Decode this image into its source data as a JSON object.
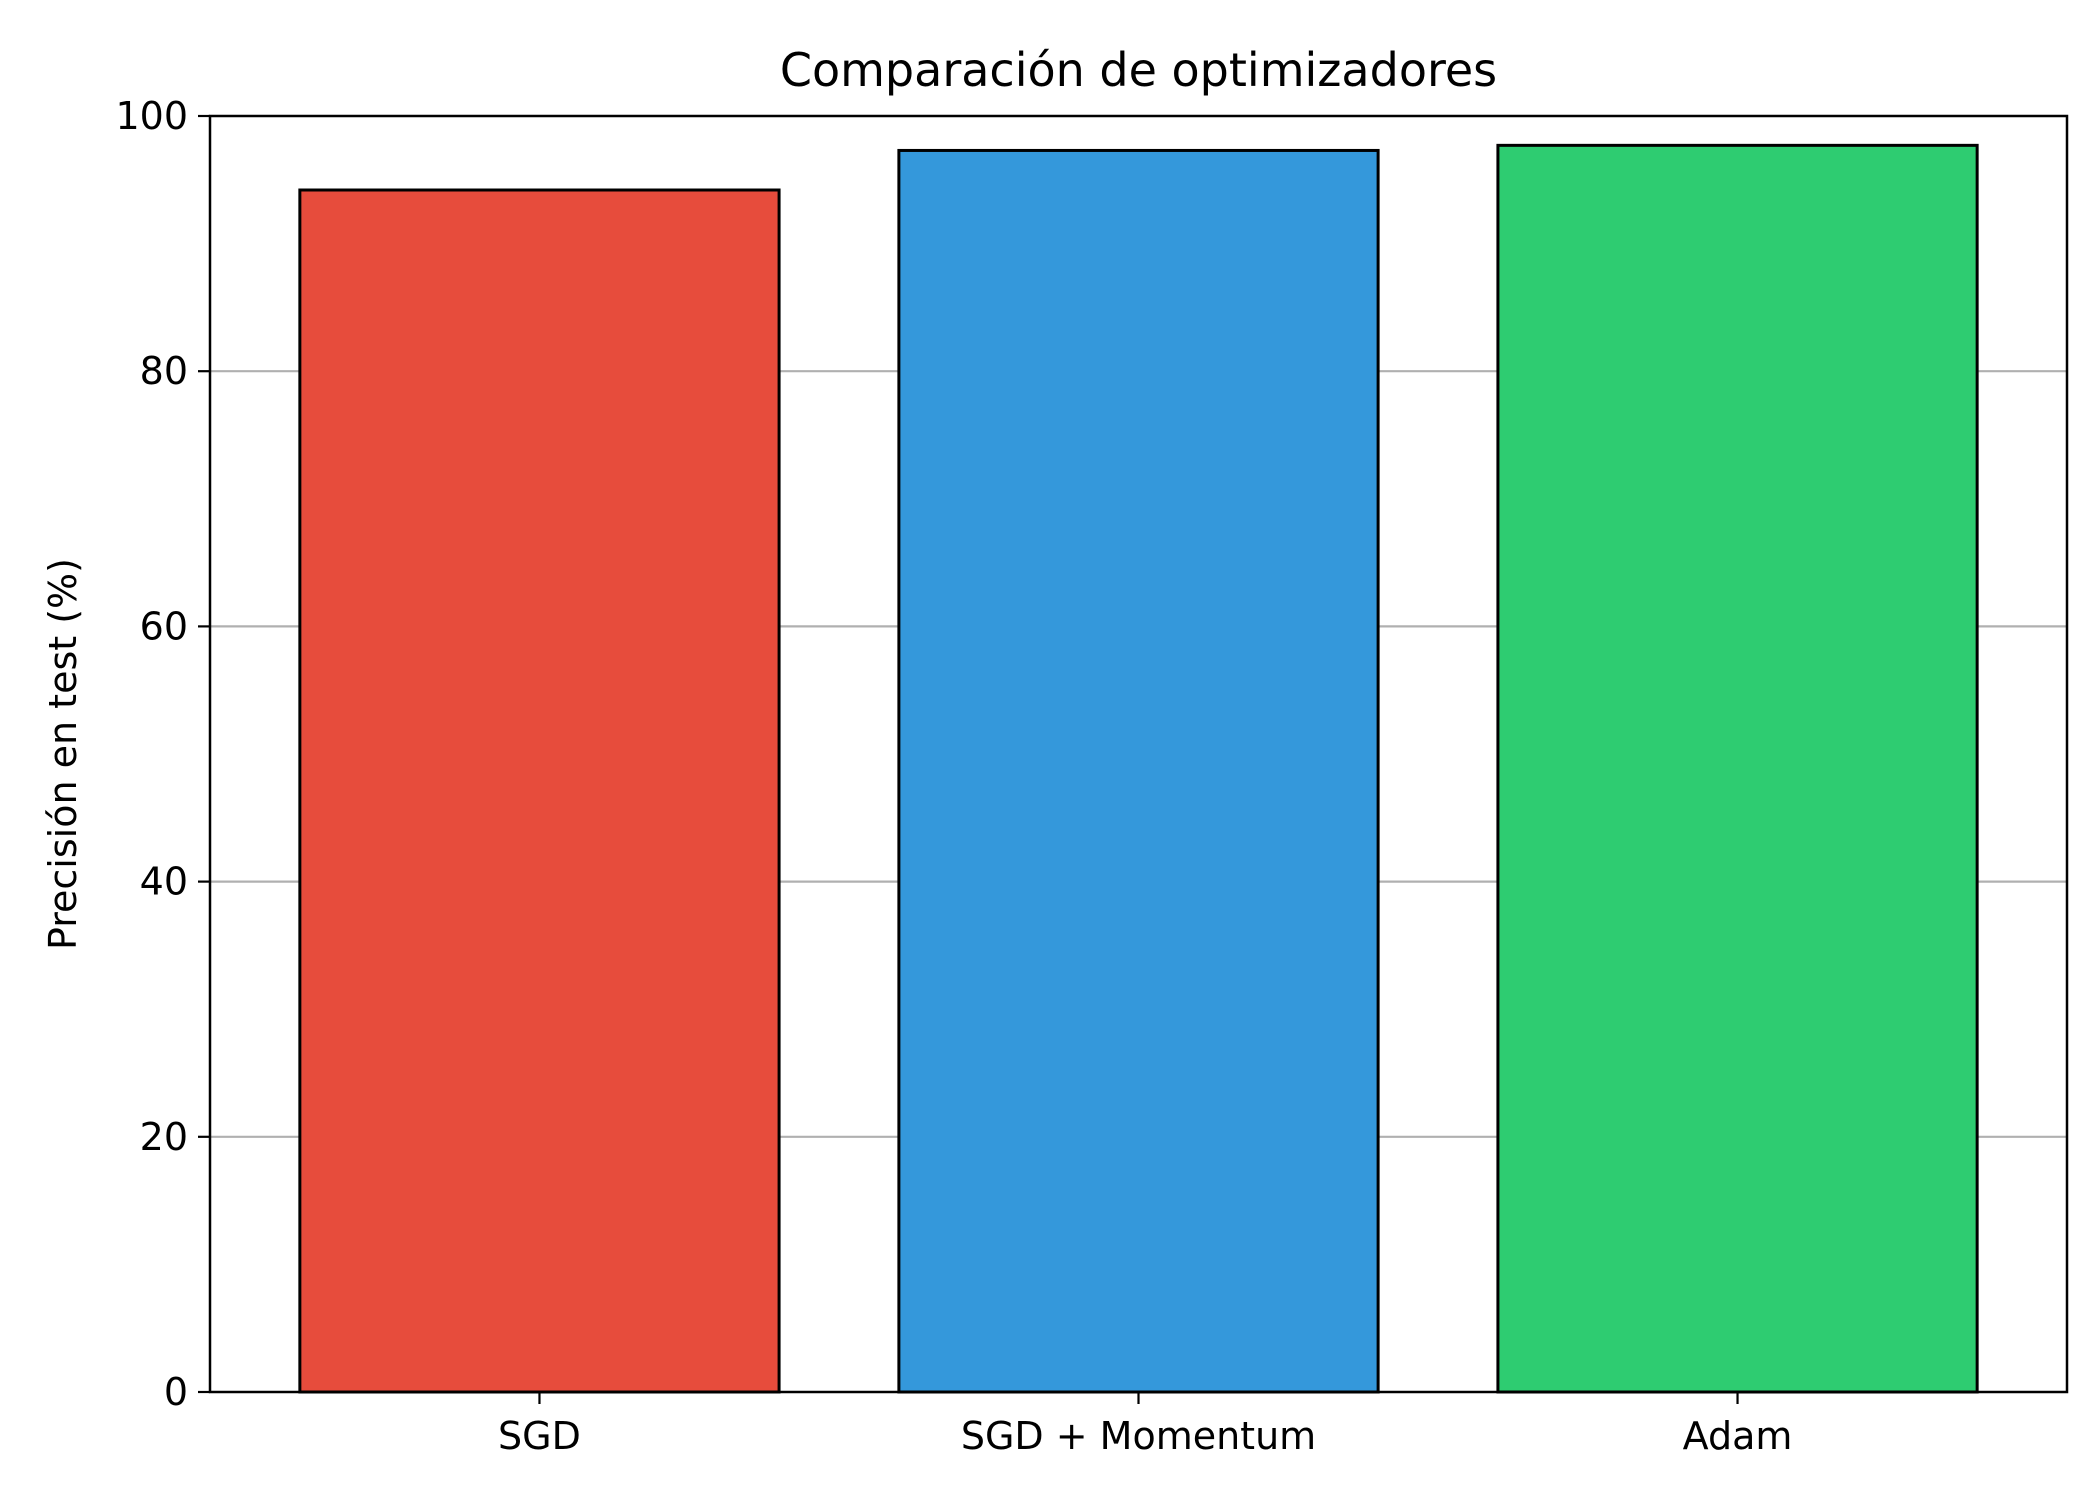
{
  "chart_data": {
    "type": "bar",
    "title": "Comparación de optimizadores",
    "xlabel": "",
    "ylabel": "Precisión en test (%)",
    "categories": [
      "SGD",
      "SGD + Momentum",
      "Adam"
    ],
    "values": [
      94.2,
      97.3,
      97.7
    ],
    "colors": [
      "#e74c3c",
      "#3498db",
      "#2ecc71"
    ],
    "edge_color": "#000000",
    "ylim": [
      0,
      100
    ],
    "yticks": [
      0,
      20,
      40,
      60,
      80,
      100
    ],
    "grid": "y",
    "grid_color": "#b0b0b0",
    "legend": "none"
  }
}
